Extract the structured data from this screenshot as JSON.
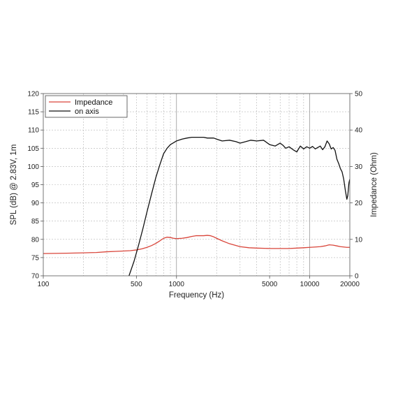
{
  "chart_data": {
    "type": "line",
    "xlabel": "Frequency (Hz)",
    "ylabel": "SPL (dB) @ 2.83V, 1m",
    "y2label": "Impedance (Ohm)",
    "xscale": "log",
    "xlim": [
      100,
      20000
    ],
    "ylim": [
      70,
      120
    ],
    "y2lim": [
      0,
      50
    ],
    "x_tick_labels": [
      "100",
      "500",
      "1000",
      "5000",
      "10000",
      "20000"
    ],
    "x_ticks": [
      100,
      500,
      1000,
      5000,
      10000,
      20000
    ],
    "y_ticks": [
      70,
      75,
      80,
      85,
      90,
      95,
      100,
      105,
      110,
      115,
      120
    ],
    "y2_ticks": [
      0,
      10,
      20,
      30,
      40,
      50
    ],
    "grid": true,
    "legend_position": "top-left",
    "series": [
      {
        "name": "Impedance",
        "axis": "right",
        "color": "#d9453a",
        "x": [
          100,
          150,
          200,
          250,
          300,
          350,
          400,
          450,
          500,
          550,
          600,
          650,
          700,
          750,
          800,
          850,
          900,
          950,
          1000,
          1100,
          1200,
          1300,
          1400,
          1500,
          1600,
          1700,
          1800,
          1900,
          2000,
          2200,
          2500,
          3000,
          3500,
          4000,
          5000,
          6000,
          7000,
          8000,
          9000,
          10000,
          11000,
          12000,
          13000,
          14000,
          15000,
          16000,
          17000,
          18000,
          19000,
          20000
        ],
        "y": [
          6.1,
          6.2,
          6.3,
          6.4,
          6.6,
          6.7,
          6.8,
          6.9,
          7.1,
          7.4,
          7.8,
          8.3,
          8.9,
          9.6,
          10.3,
          10.6,
          10.5,
          10.3,
          10.2,
          10.3,
          10.5,
          10.8,
          11.0,
          11.0,
          11.0,
          11.1,
          11.0,
          10.7,
          10.3,
          9.6,
          8.8,
          8.0,
          7.7,
          7.6,
          7.5,
          7.5,
          7.5,
          7.6,
          7.7,
          7.8,
          7.9,
          8.0,
          8.2,
          8.5,
          8.4,
          8.2,
          8.0,
          7.9,
          7.8,
          7.8
        ]
      },
      {
        "name": "on axis",
        "axis": "left",
        "color": "#111111",
        "x": [
          440,
          480,
          520,
          560,
          600,
          650,
          700,
          750,
          800,
          850,
          900,
          950,
          1000,
          1100,
          1200,
          1300,
          1400,
          1500,
          1600,
          1700,
          1800,
          1900,
          2000,
          2200,
          2500,
          2800,
          3000,
          3300,
          3600,
          4000,
          4500,
          5000,
          5500,
          6000,
          6300,
          6600,
          7000,
          7500,
          8000,
          8500,
          9000,
          9500,
          10000,
          10500,
          11000,
          12000,
          12500,
          13000,
          13500,
          14000,
          14500,
          15000,
          15500,
          16000,
          16500,
          17000,
          17500,
          18000,
          18500,
          19000,
          19300,
          19700,
          20000
        ],
        "y": [
          70.0,
          74.0,
          78.5,
          83.0,
          87.5,
          92.5,
          97.0,
          100.5,
          103.5,
          105.0,
          106.0,
          106.5,
          107.0,
          107.5,
          107.8,
          108.0,
          108.0,
          108.0,
          108.0,
          107.8,
          107.8,
          107.8,
          107.5,
          107.0,
          107.2,
          106.8,
          106.4,
          106.8,
          107.2,
          107.0,
          107.2,
          106.0,
          105.6,
          106.4,
          105.8,
          105.0,
          105.4,
          104.6,
          104.0,
          105.6,
          104.8,
          105.4,
          105.0,
          105.5,
          104.8,
          105.6,
          104.6,
          105.4,
          107.0,
          106.2,
          104.8,
          105.2,
          104.4,
          102.0,
          100.8,
          99.4,
          98.5,
          96.5,
          93.5,
          91.0,
          92.0,
          95.5,
          96.5
        ]
      }
    ]
  }
}
